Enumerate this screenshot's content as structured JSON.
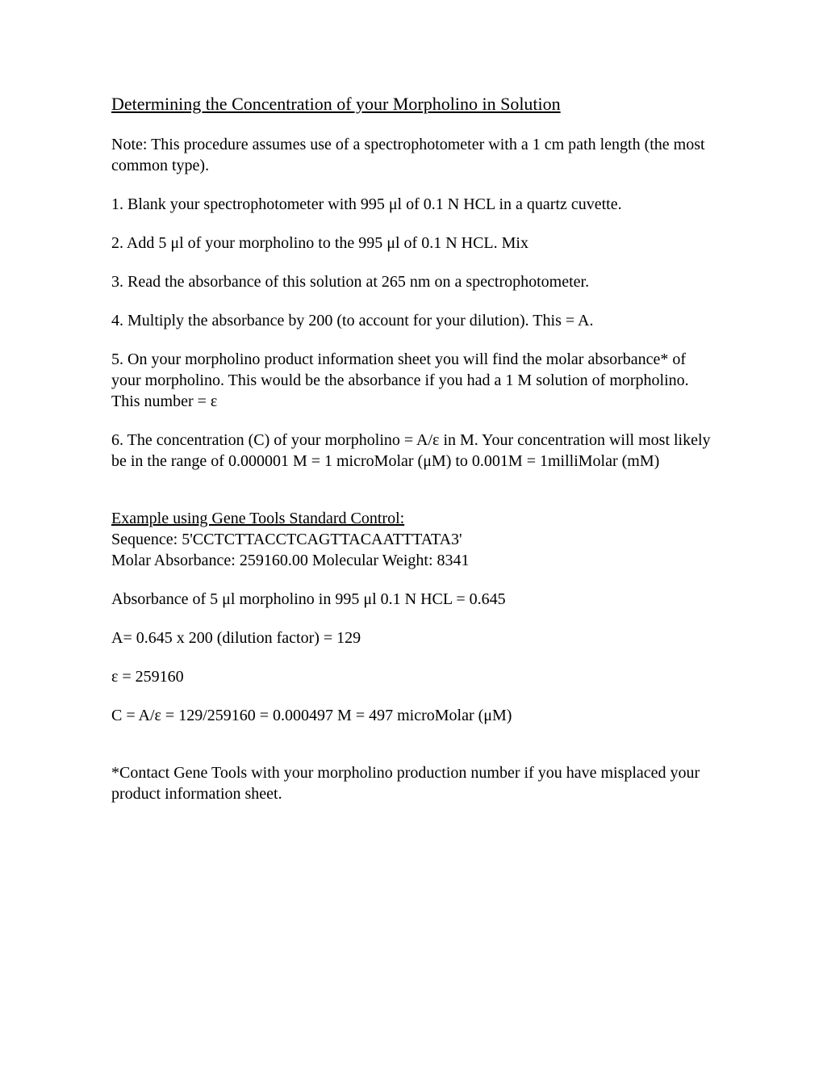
{
  "title": "Determining the Concentration of  your Morpholino in Solution",
  "note": "Note: This procedure assumes use of a spectrophotometer with a 1 cm path length (the most common type).",
  "step1": "1. Blank your spectrophotometer with 995 μl of  0.1 N HCL in a quartz cuvette.",
  "step2": "2. Add 5 μl of your morpholino to the 995 μl of  0.1 N HCL. Mix",
  "step3": "3. Read the absorbance of this solution at 265 nm on a spectrophotometer.",
  "step4": "4. Multiply the absorbance by 200 (to account for your dilution). This = A.",
  "step5": "5. On your morpholino product information sheet you will find the molar absorbance* of your morpholino. This would be the absorbance if you had a 1 M solution of morpholino. This number = ε",
  "step6": "6.   The concentration (C) of your morpholino = A/ε in M.  Your concentration will most likely be in the range of 0.000001 M = 1 microMolar (μM)  to 0.001M  = 1milliMolar (mM)",
  "exampleHeading": "Example using Gene Tools Standard Control:",
  "sequence": "Sequence: 5'CCTCTTACCTCAGTTACAATTTATA3'",
  "molarAbs": "Molar Absorbance: 259160.00  Molecular Weight: 8341",
  "absLine": "Absorbance of 5 μl morpholino in 995 μl  0.1 N HCL =   0.645",
  "aLine": "A= 0.645 x 200 (dilution factor) =  129",
  "epsLine": "ε = 259160",
  "cLine": "C = A/ε  =  129/259160 = 0.000497 M  =  497 microMolar (μM)",
  "footnote": "*Contact Gene Tools with your morpholino production number if you have misplaced your product information sheet."
}
